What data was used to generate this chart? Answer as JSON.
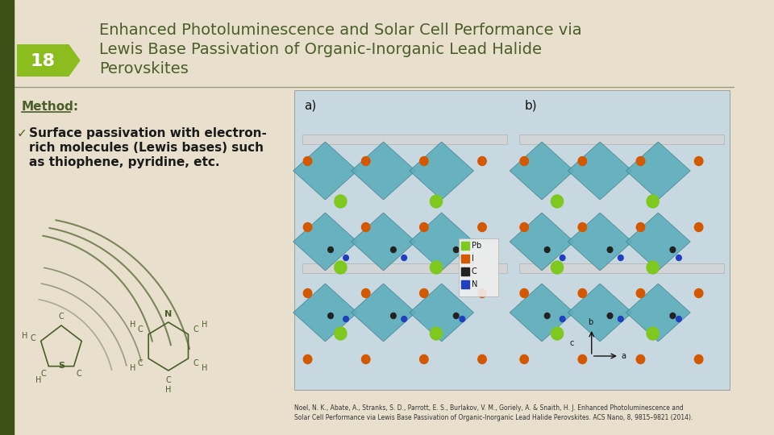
{
  "slide_bg": "#e8e0cc",
  "title_text_line1": "Enhanced Photoluminescence and Solar Cell Performance via",
  "title_text_line2": "Lewis Base Passivation of Organic-Inorganic Lead Halide",
  "title_text_line3": "Perovskites",
  "title_color": "#4a5e2a",
  "slide_number": "18",
  "slide_number_bg": "#8cbd1e",
  "slide_number_color": "#ffffff",
  "method_label": "Method:",
  "method_color": "#4a5e2a",
  "bullet_text_line1": "Surface passivation with electron-",
  "bullet_text_line2": "rich molecules (Lewis bases) such",
  "bullet_text_line3": "as thiophene, pyridine, etc.",
  "bullet_color": "#1a1a1a",
  "citation_text_line1": "Noel, N. K., Abate, A., Stranks, S. D., Parrott, E. S., Burlakov, V. M., Goriely, A. & Snaith, H. J. Enhanced Photoluminescence and",
  "citation_text_line2": "Solar Cell Performance via Lewis Base Passivation of Organic-Inorganic Lead Halide Perovskites. ACS Nano, 8, 9815–9821 (2014).",
  "citation_color": "#333333",
  "left_strip_color": "#3d5016",
  "decorative_arc_color": "#4a5e2a"
}
